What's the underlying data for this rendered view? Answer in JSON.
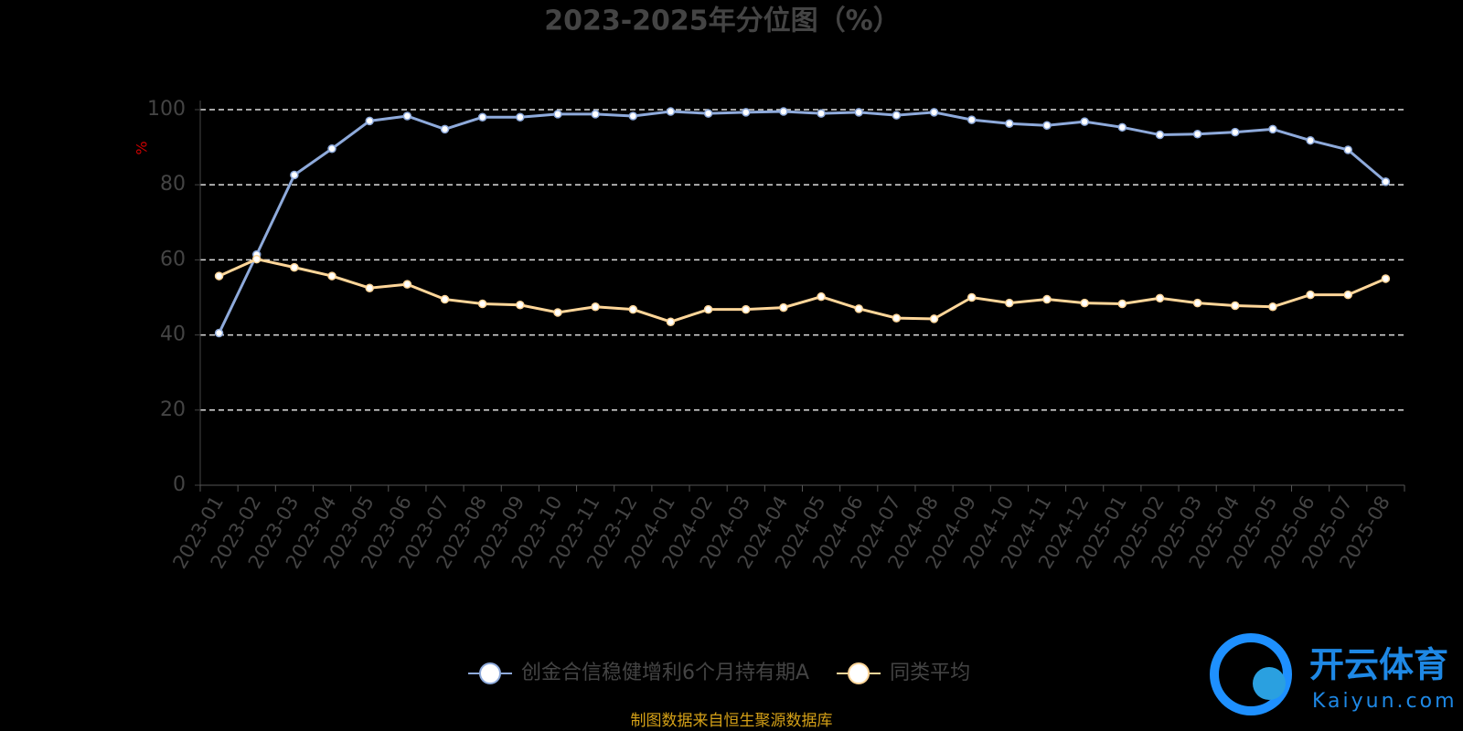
{
  "chart_data": {
    "type": "line",
    "title": "2023-2025年分位图（%）",
    "y_label": "%",
    "categories": [
      "2023-01",
      "2023-02",
      "2023-03",
      "2023-04",
      "2023-05",
      "2023-06",
      "2023-07",
      "2023-08",
      "2023-09",
      "2023-10",
      "2023-11",
      "2023-12",
      "2024-01",
      "2024-02",
      "2024-03",
      "2024-04",
      "2024-05",
      "2024-06",
      "2024-07",
      "2024-08",
      "2024-09",
      "2024-10",
      "2024-11",
      "2024-12",
      "2025-01",
      "2025-02",
      "2025-03",
      "2025-04",
      "2025-05",
      "2025-06",
      "2025-07",
      "2025-08"
    ],
    "series": [
      {
        "name": "创金合信稳健增利6个月持有期A",
        "color": "#8eaadb",
        "values": [
          40.5,
          61.4,
          82.6,
          89.6,
          97.0,
          98.3,
          94.8,
          98.0,
          98.0,
          98.8,
          98.8,
          98.3,
          99.5,
          99.0,
          99.3,
          99.5,
          99.0,
          99.3,
          98.5,
          99.3,
          97.3,
          96.3,
          95.8,
          96.8,
          95.3,
          93.3,
          93.5,
          94.0,
          94.8,
          91.8,
          89.3,
          80.8
        ]
      },
      {
        "name": "同类平均",
        "color": "#ffd699",
        "values": [
          55.7,
          60.2,
          58.0,
          55.7,
          52.5,
          53.5,
          49.5,
          48.3,
          48.0,
          46.0,
          47.5,
          46.8,
          43.5,
          46.8,
          46.8,
          47.3,
          50.2,
          47.0,
          44.5,
          44.3,
          50.0,
          48.5,
          49.5,
          48.5,
          48.3,
          49.8,
          48.5,
          47.8,
          47.5,
          50.7,
          50.7,
          55.0
        ]
      }
    ],
    "ylim": [
      0,
      100
    ],
    "yticks": [
      0,
      20,
      40,
      60,
      80,
      100
    ],
    "grid": true,
    "source": "制图数据来自恒生聚源数据库"
  },
  "watermark": {
    "brand": "开云体育",
    "site": "Kaiyun.com"
  }
}
